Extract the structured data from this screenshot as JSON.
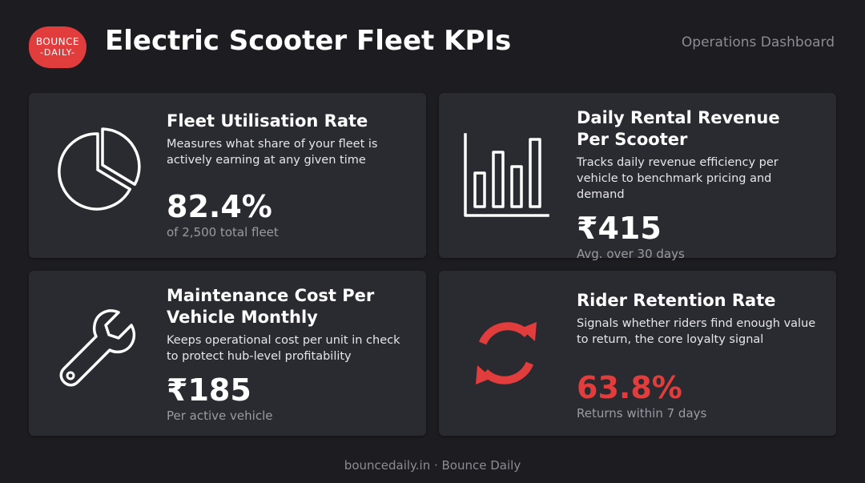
{
  "brand": {
    "logo_top": "BOUNCE",
    "logo_bottom": "-DAILY-",
    "accent_color": "#e23d3d"
  },
  "header": {
    "title": "Electric Scooter Fleet KPIs",
    "subtitle": "Operations Dashboard"
  },
  "cards": [
    {
      "icon": "pie-chart-icon",
      "title_lines": [
        "Fleet Utilisation Rate"
      ],
      "description": "Measures what share of your fleet is actively earning at any given time",
      "value": "82.4%",
      "note": "of 2,500 total fleet"
    },
    {
      "icon": "bar-chart-icon",
      "title_lines": [
        "Daily Rental Revenue",
        "Per Scooter"
      ],
      "description": "Tracks daily revenue efficiency per vehicle to benchmark pricing and demand",
      "value": "₹415",
      "note": "Avg. over 30 days"
    },
    {
      "icon": "wrench-icon",
      "title_lines": [
        "Maintenance Cost Per",
        "Vehicle Monthly"
      ],
      "description": "Keeps operational cost per unit in check to protect hub-level profitability",
      "value": "₹185",
      "note": "Per active vehicle"
    },
    {
      "icon": "refresh-icon",
      "title_lines": [
        "Rider Retention Rate"
      ],
      "description": "Signals whether riders find enough value to return, the core loyalty signal",
      "value": "63.8%",
      "note": "Returns within 7 days"
    }
  ],
  "footer": {
    "text": "bouncedaily.in · Bounce Daily"
  }
}
